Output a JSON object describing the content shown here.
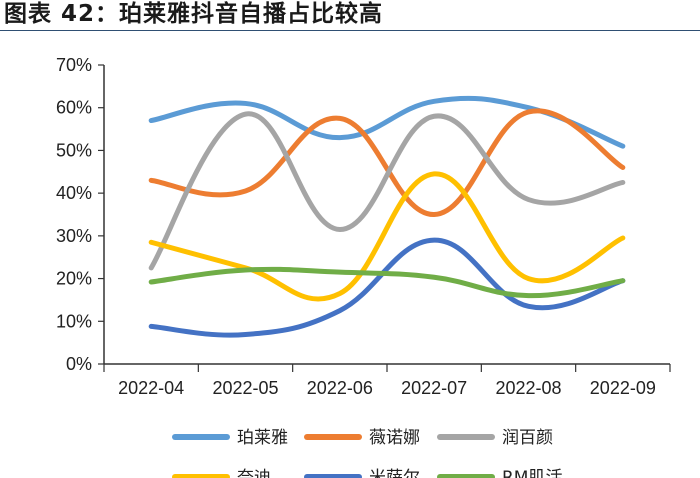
{
  "figure": {
    "title": "图表 42：珀莱雅抖音自播占比较高"
  },
  "chart_data": {
    "type": "line",
    "title": "",
    "xlabel": "",
    "ylabel": "",
    "categories": [
      "2022-04",
      "2022-05",
      "2022-06",
      "2022-07",
      "2022-08",
      "2022-09"
    ],
    "ylim": [
      0,
      70
    ],
    "ytick_labels": [
      "0%",
      "10%",
      "20%",
      "30%",
      "40%",
      "50%",
      "60%",
      "70%"
    ],
    "grid": false,
    "legend_position": "bottom",
    "series": [
      {
        "name": "珀莱雅",
        "color": "#5b9bd5",
        "values": [
          57,
          61,
          53,
          61.5,
          60,
          51
        ]
      },
      {
        "name": "薇诺娜",
        "color": "#ed7d31",
        "values": [
          43,
          40.5,
          57.5,
          35,
          59,
          46
        ]
      },
      {
        "name": "润百颜",
        "color": "#a5a5a5",
        "values": [
          22.5,
          58.5,
          31.5,
          58,
          38.5,
          42.5
        ]
      },
      {
        "name": "奈迪",
        "color": "#ffc000",
        "values": [
          28.5,
          22.5,
          16.5,
          44.5,
          20,
          29.5
        ]
      },
      {
        "name": "米萨尔",
        "color": "#4472c4",
        "values": [
          8.8,
          6.9,
          12.5,
          29,
          13.5,
          19.5
        ]
      },
      {
        "name": "RM肌活",
        "color": "#70ad47",
        "values": [
          19.2,
          22,
          21.5,
          20.3,
          16,
          19.5
        ]
      }
    ]
  }
}
